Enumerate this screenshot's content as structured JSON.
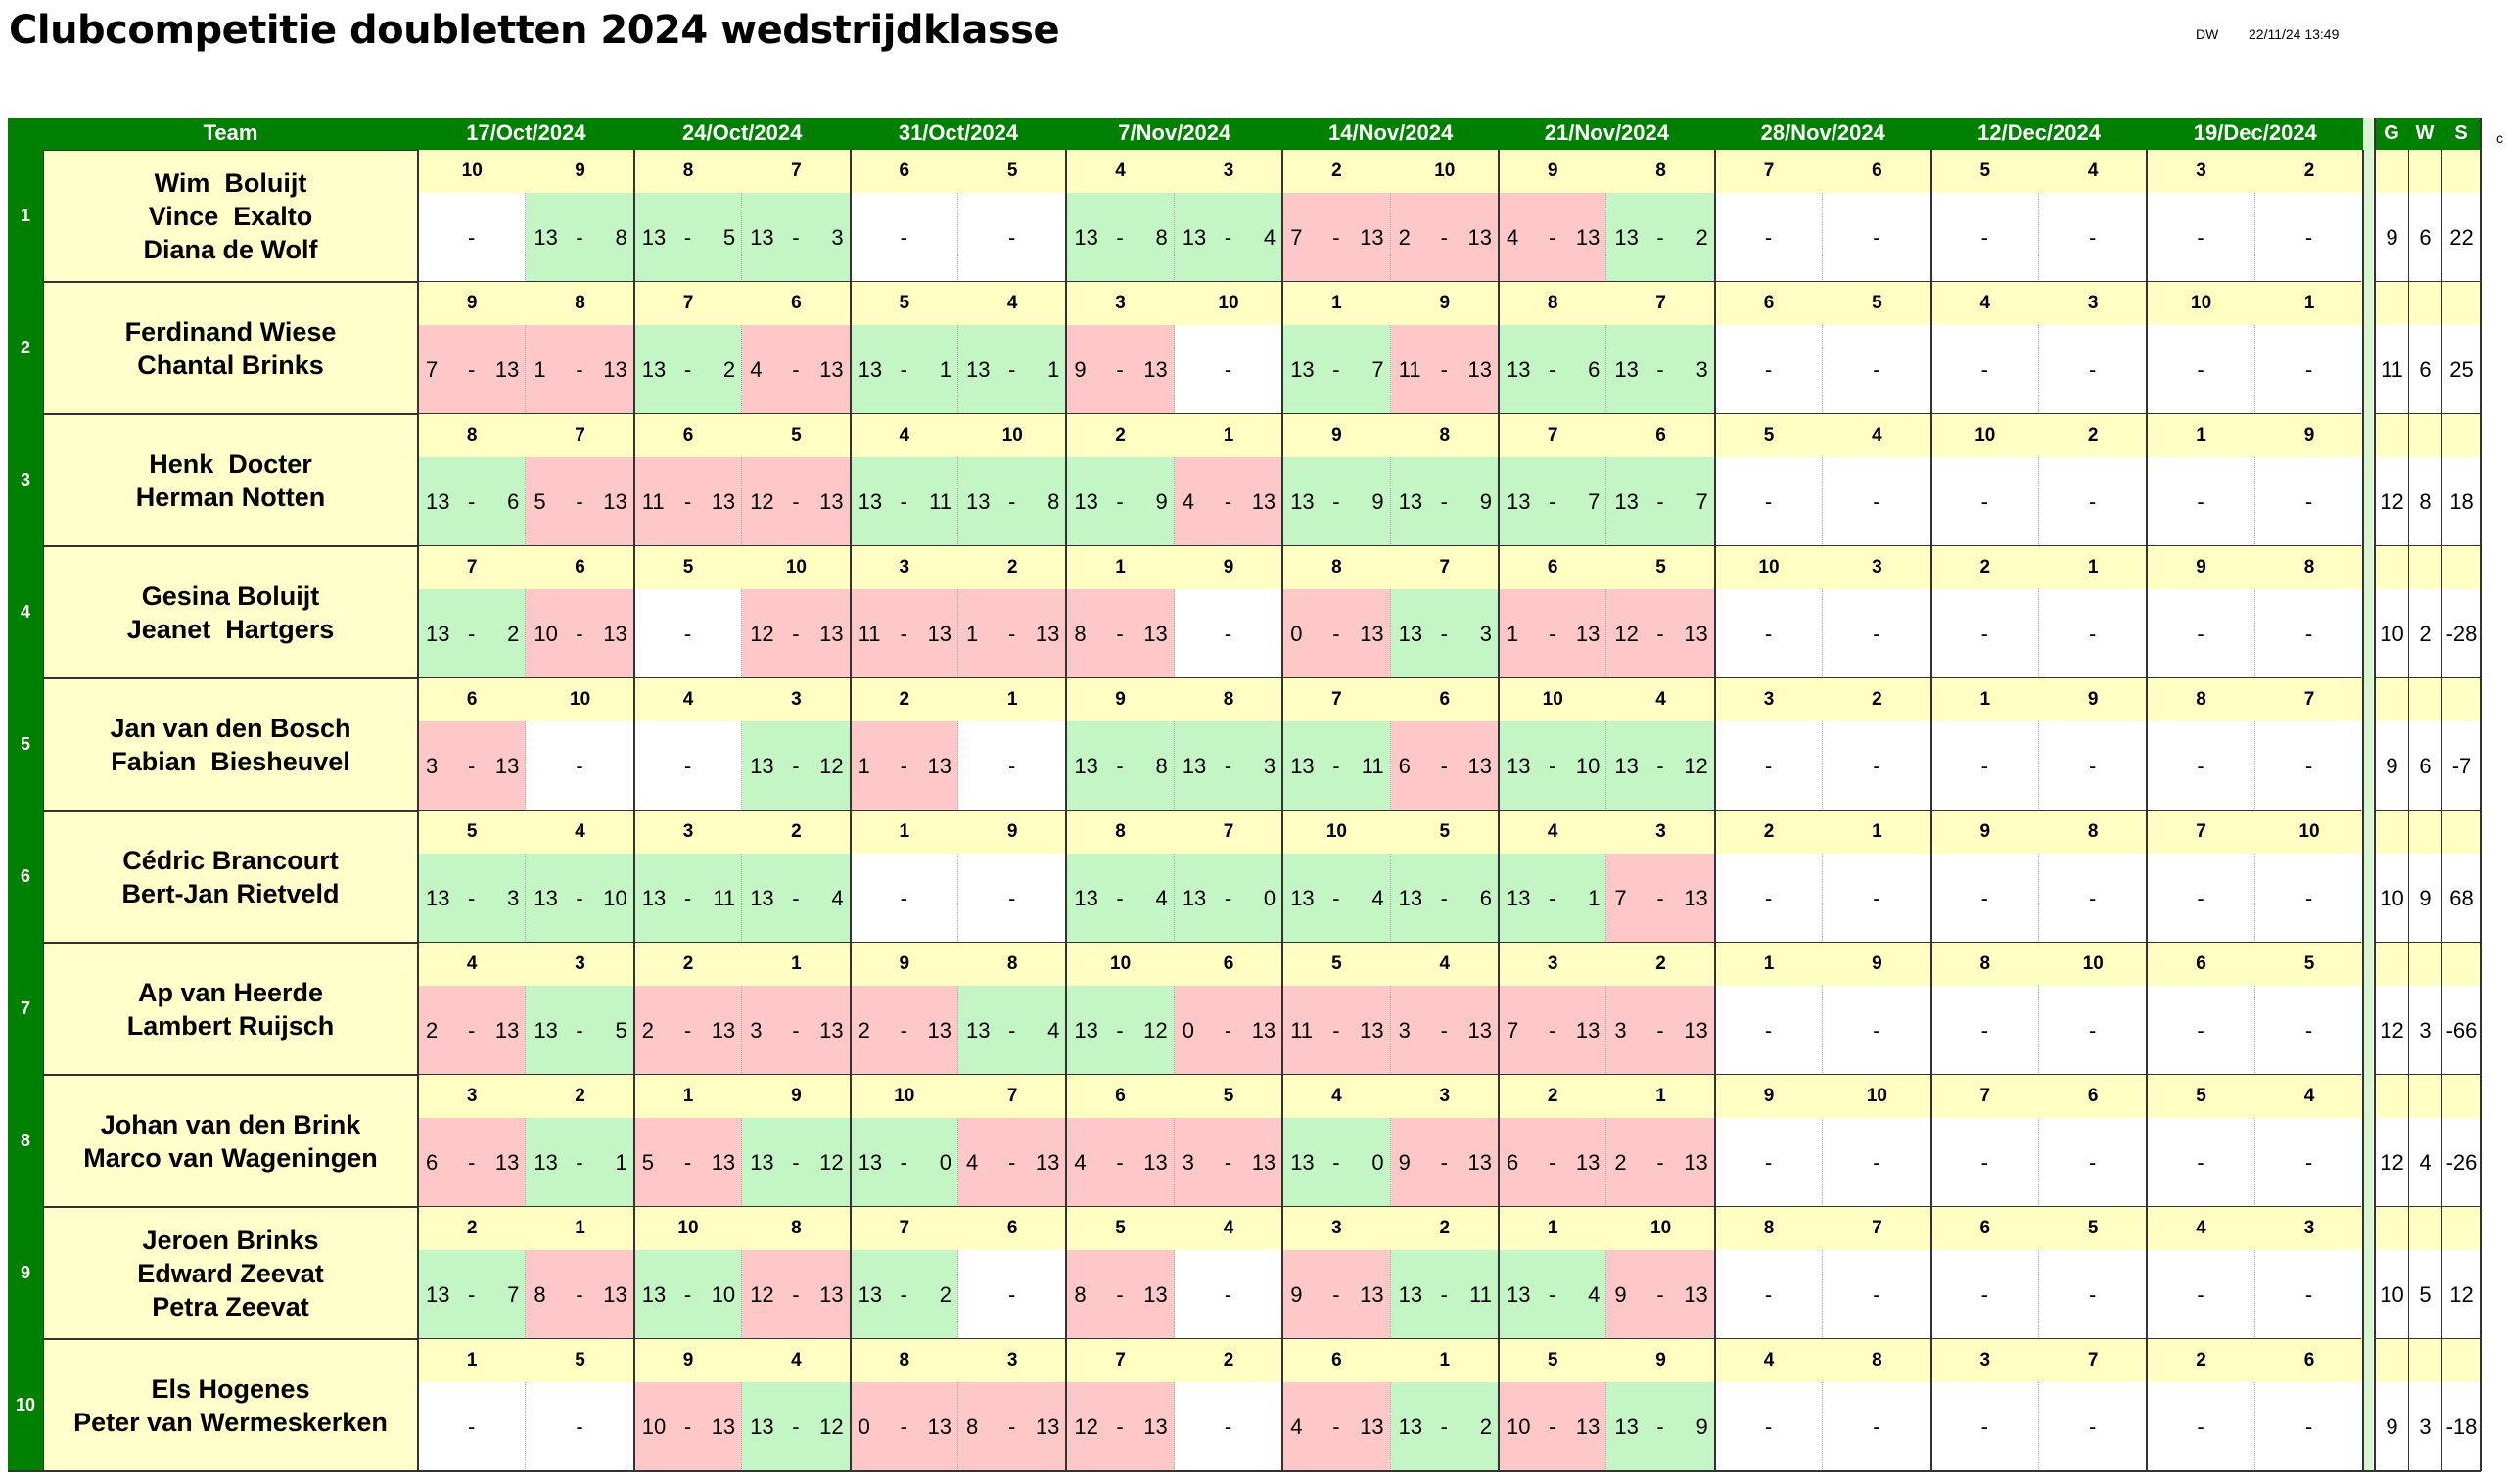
{
  "title": "Clubcompetitie doubletten 2024 wedstrijdklasse",
  "author": "DW",
  "timestamp": "22/11/24 13:49",
  "edge_char": "c",
  "header": {
    "team": "Team",
    "dates": [
      "17/Oct/2024",
      "24/Oct/2024",
      "31/Oct/2024",
      "7/Nov/2024",
      "14/Nov/2024",
      "21/Nov/2024",
      "28/Nov/2024",
      "12/Dec/2024",
      "19/Dec/2024"
    ],
    "stats": [
      "G",
      "W",
      "S"
    ]
  },
  "colors": {
    "green": "#008000",
    "win": "#c4f5c4",
    "loss": "#ffc8c8",
    "yellow": "#ffffcc"
  },
  "teams": [
    {
      "num": "1",
      "players": [
        "Wim  Boluijt",
        "Vince  Exalto",
        "Diana de Wolf"
      ],
      "opp": [
        "10",
        "9",
        "8",
        "7",
        "6",
        "5",
        "4",
        "3",
        "2",
        "10",
        "9",
        "8",
        "7",
        "6",
        "5",
        "4",
        "3",
        "2"
      ],
      "scores": [
        null,
        [
          "13",
          "8"
        ],
        [
          "13",
          "5"
        ],
        [
          "13",
          "3"
        ],
        null,
        null,
        [
          "13",
          "8"
        ],
        [
          "13",
          "4"
        ],
        [
          "7",
          "13"
        ],
        [
          "2",
          "13"
        ],
        [
          "4",
          "13"
        ],
        [
          "13",
          "2"
        ],
        null,
        null,
        null,
        null,
        null,
        null
      ],
      "stats": [
        "9",
        "6",
        "22"
      ]
    },
    {
      "num": "2",
      "players": [
        "Ferdinand Wiese",
        "Chantal Brinks"
      ],
      "opp": [
        "9",
        "8",
        "7",
        "6",
        "5",
        "4",
        "3",
        "10",
        "1",
        "9",
        "8",
        "7",
        "6",
        "5",
        "4",
        "3",
        "10",
        "1"
      ],
      "scores": [
        [
          "7",
          "13"
        ],
        [
          "1",
          "13"
        ],
        [
          "13",
          "2"
        ],
        [
          "4",
          "13"
        ],
        [
          "13",
          "1"
        ],
        [
          "13",
          "1"
        ],
        [
          "9",
          "13"
        ],
        null,
        [
          "13",
          "7"
        ],
        [
          "11",
          "13"
        ],
        [
          "13",
          "6"
        ],
        [
          "13",
          "3"
        ],
        null,
        null,
        null,
        null,
        null,
        null
      ],
      "stats": [
        "11",
        "6",
        "25"
      ]
    },
    {
      "num": "3",
      "players": [
        "Henk  Docter",
        "Herman Notten"
      ],
      "opp": [
        "8",
        "7",
        "6",
        "5",
        "4",
        "10",
        "2",
        "1",
        "9",
        "8",
        "7",
        "6",
        "5",
        "4",
        "10",
        "2",
        "1",
        "9"
      ],
      "scores": [
        [
          "13",
          "6"
        ],
        [
          "5",
          "13"
        ],
        [
          "11",
          "13"
        ],
        [
          "12",
          "13"
        ],
        [
          "13",
          "11"
        ],
        [
          "13",
          "8"
        ],
        [
          "13",
          "9"
        ],
        [
          "4",
          "13"
        ],
        [
          "13",
          "9"
        ],
        [
          "13",
          "9"
        ],
        [
          "13",
          "7"
        ],
        [
          "13",
          "7"
        ],
        null,
        null,
        null,
        null,
        null,
        null
      ],
      "stats": [
        "12",
        "8",
        "18"
      ]
    },
    {
      "num": "4",
      "players": [
        "Gesina Boluijt",
        "Jeanet  Hartgers"
      ],
      "opp": [
        "7",
        "6",
        "5",
        "10",
        "3",
        "2",
        "1",
        "9",
        "8",
        "7",
        "6",
        "5",
        "10",
        "3",
        "2",
        "1",
        "9",
        "8"
      ],
      "scores": [
        [
          "13",
          "2"
        ],
        [
          "10",
          "13"
        ],
        null,
        [
          "12",
          "13"
        ],
        [
          "11",
          "13"
        ],
        [
          "1",
          "13"
        ],
        [
          "8",
          "13"
        ],
        null,
        [
          "0",
          "13"
        ],
        [
          "13",
          "3"
        ],
        [
          "1",
          "13"
        ],
        [
          "12",
          "13"
        ],
        null,
        null,
        null,
        null,
        null,
        null
      ],
      "stats": [
        "10",
        "2",
        "-28"
      ]
    },
    {
      "num": "5",
      "players": [
        "Jan van den Bosch",
        "Fabian  Biesheuvel"
      ],
      "opp": [
        "6",
        "10",
        "4",
        "3",
        "2",
        "1",
        "9",
        "8",
        "7",
        "6",
        "10",
        "4",
        "3",
        "2",
        "1",
        "9",
        "8",
        "7"
      ],
      "scores": [
        [
          "3",
          "13"
        ],
        null,
        null,
        [
          "13",
          "12"
        ],
        [
          "1",
          "13"
        ],
        null,
        [
          "13",
          "8"
        ],
        [
          "13",
          "3"
        ],
        [
          "13",
          "11"
        ],
        [
          "6",
          "13"
        ],
        [
          "13",
          "10"
        ],
        [
          "13",
          "12"
        ],
        null,
        null,
        null,
        null,
        null,
        null
      ],
      "stats": [
        "9",
        "6",
        "-7"
      ]
    },
    {
      "num": "6",
      "players": [
        "Cédric Brancourt",
        "Bert-Jan Rietveld"
      ],
      "opp": [
        "5",
        "4",
        "3",
        "2",
        "1",
        "9",
        "8",
        "7",
        "10",
        "5",
        "4",
        "3",
        "2",
        "1",
        "9",
        "8",
        "7",
        "10"
      ],
      "scores": [
        [
          "13",
          "3"
        ],
        [
          "13",
          "10"
        ],
        [
          "13",
          "11"
        ],
        [
          "13",
          "4"
        ],
        null,
        null,
        [
          "13",
          "4"
        ],
        [
          "13",
          "0"
        ],
        [
          "13",
          "4"
        ],
        [
          "13",
          "6"
        ],
        [
          "13",
          "1"
        ],
        [
          "7",
          "13"
        ],
        null,
        null,
        null,
        null,
        null,
        null
      ],
      "stats": [
        "10",
        "9",
        "68"
      ]
    },
    {
      "num": "7",
      "players": [
        "Ap van Heerde",
        "Lambert Ruijsch"
      ],
      "opp": [
        "4",
        "3",
        "2",
        "1",
        "9",
        "8",
        "10",
        "6",
        "5",
        "4",
        "3",
        "2",
        "1",
        "9",
        "8",
        "10",
        "6",
        "5"
      ],
      "scores": [
        [
          "2",
          "13"
        ],
        [
          "13",
          "5"
        ],
        [
          "2",
          "13"
        ],
        [
          "3",
          "13"
        ],
        [
          "2",
          "13"
        ],
        [
          "13",
          "4"
        ],
        [
          "13",
          "12"
        ],
        [
          "0",
          "13"
        ],
        [
          "11",
          "13"
        ],
        [
          "3",
          "13"
        ],
        [
          "7",
          "13"
        ],
        [
          "3",
          "13"
        ],
        null,
        null,
        null,
        null,
        null,
        null
      ],
      "stats": [
        "12",
        "3",
        "-66"
      ]
    },
    {
      "num": "8",
      "players": [
        "Johan van den Brink",
        "Marco van Wageningen"
      ],
      "opp": [
        "3",
        "2",
        "1",
        "9",
        "10",
        "7",
        "6",
        "5",
        "4",
        "3",
        "2",
        "1",
        "9",
        "10",
        "7",
        "6",
        "5",
        "4"
      ],
      "scores": [
        [
          "6",
          "13"
        ],
        [
          "13",
          "1"
        ],
        [
          "5",
          "13"
        ],
        [
          "13",
          "12"
        ],
        [
          "13",
          "0"
        ],
        [
          "4",
          "13"
        ],
        [
          "4",
          "13"
        ],
        [
          "3",
          "13"
        ],
        [
          "13",
          "0"
        ],
        [
          "9",
          "13"
        ],
        [
          "6",
          "13"
        ],
        [
          "2",
          "13"
        ],
        null,
        null,
        null,
        null,
        null,
        null
      ],
      "stats": [
        "12",
        "4",
        "-26"
      ]
    },
    {
      "num": "9",
      "players": [
        "Jeroen Brinks",
        "Edward Zeevat",
        "Petra Zeevat"
      ],
      "opp": [
        "2",
        "1",
        "10",
        "8",
        "7",
        "6",
        "5",
        "4",
        "3",
        "2",
        "1",
        "10",
        "8",
        "7",
        "6",
        "5",
        "4",
        "3"
      ],
      "scores": [
        [
          "13",
          "7"
        ],
        [
          "8",
          "13"
        ],
        [
          "13",
          "10"
        ],
        [
          "12",
          "13"
        ],
        [
          "13",
          "2"
        ],
        null,
        [
          "8",
          "13"
        ],
        null,
        [
          "9",
          "13"
        ],
        [
          "13",
          "11"
        ],
        [
          "13",
          "4"
        ],
        [
          "9",
          "13"
        ],
        null,
        null,
        null,
        null,
        null,
        null
      ],
      "stats": [
        "10",
        "5",
        "12"
      ]
    },
    {
      "num": "10",
      "players": [
        "Els Hogenes",
        "Peter van Wermeskerken"
      ],
      "opp": [
        "1",
        "5",
        "9",
        "4",
        "8",
        "3",
        "7",
        "2",
        "6",
        "1",
        "5",
        "9",
        "4",
        "8",
        "3",
        "7",
        "2",
        "6"
      ],
      "scores": [
        null,
        null,
        [
          "10",
          "13"
        ],
        [
          "13",
          "12"
        ],
        [
          "0",
          "13"
        ],
        [
          "8",
          "13"
        ],
        [
          "12",
          "13"
        ],
        null,
        [
          "4",
          "13"
        ],
        [
          "13",
          "2"
        ],
        [
          "10",
          "13"
        ],
        [
          "13",
          "9"
        ],
        null,
        null,
        null,
        null,
        null,
        null
      ],
      "stats": [
        "9",
        "3",
        "-18"
      ]
    }
  ]
}
